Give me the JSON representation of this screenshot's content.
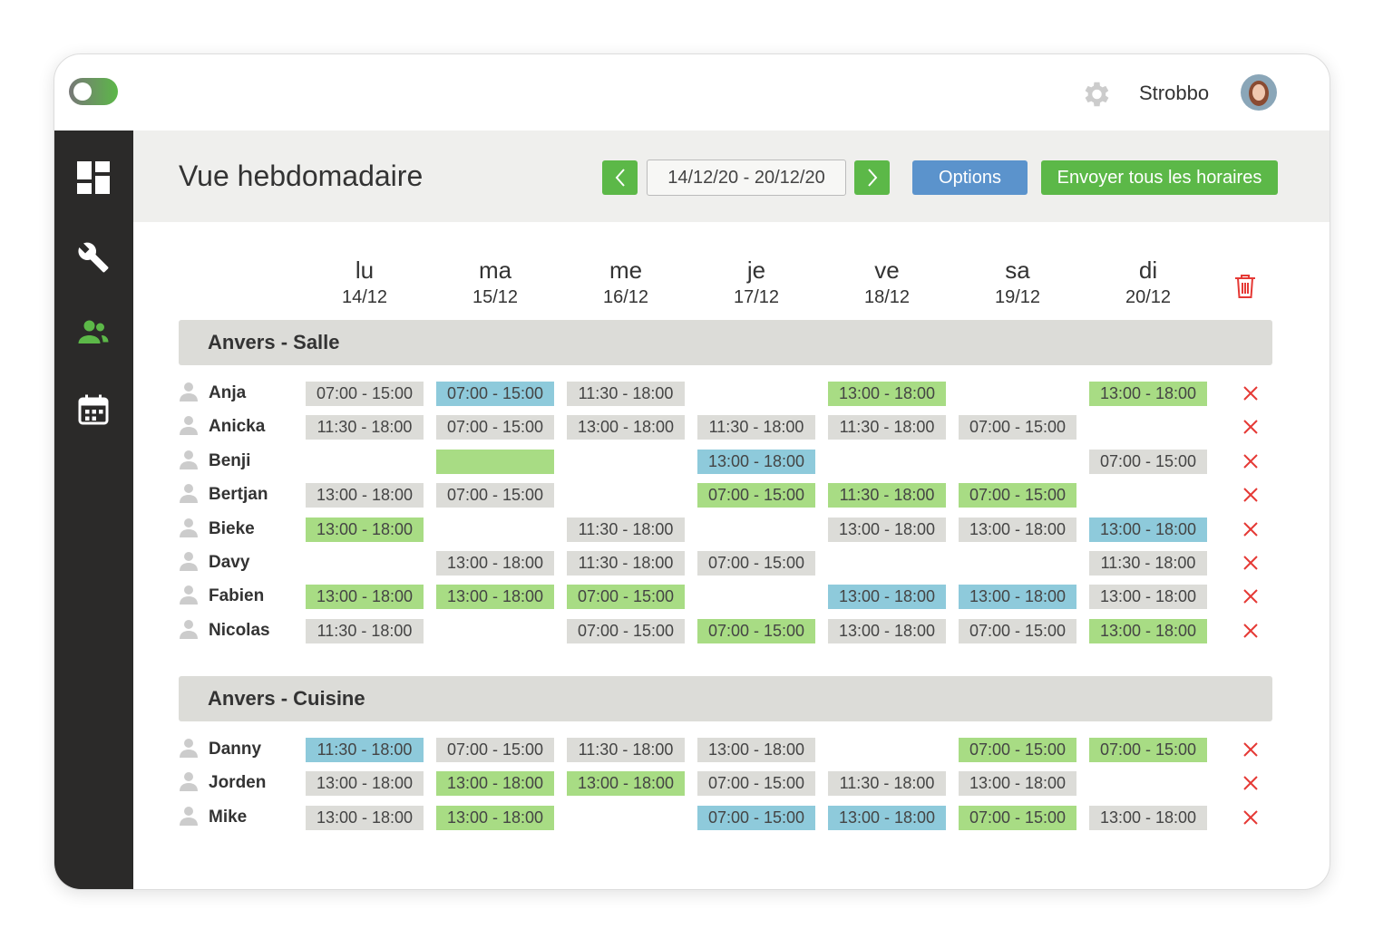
{
  "app": {
    "user": "Strobbo"
  },
  "header": {
    "title": "Vue hebdomadaire",
    "date_range": "14/12/20 - 20/12/20",
    "options_button": "Options",
    "send_button": "Envoyer tous les horaires"
  },
  "days": [
    {
      "name": "lu",
      "date": "14/12"
    },
    {
      "name": "ma",
      "date": "15/12"
    },
    {
      "name": "me",
      "date": "16/12"
    },
    {
      "name": "je",
      "date": "17/12"
    },
    {
      "name": "ve",
      "date": "18/12"
    },
    {
      "name": "sa",
      "date": "19/12"
    },
    {
      "name": "di",
      "date": "20/12"
    }
  ],
  "groups": [
    {
      "name": "Anvers - Salle",
      "rows": [
        {
          "name": "Anja",
          "shifts": [
            {
              "time": "07:00 - 15:00",
              "color": "#dcdcd8"
            },
            {
              "time": "07:00 - 15:00",
              "color": "#8ecadb"
            },
            {
              "time": "11:30 - 18:00",
              "color": "#dcdcd8"
            },
            null,
            {
              "time": "13:00 - 18:00",
              "color": "#a8dc84"
            },
            null,
            {
              "time": "13:00 - 18:00",
              "color": "#a8dc84"
            }
          ]
        },
        {
          "name": "Anicka",
          "shifts": [
            {
              "time": "11:30 - 18:00",
              "color": "#dcdcd8"
            },
            {
              "time": "07:00 - 15:00",
              "color": "#dcdcd8"
            },
            {
              "time": "13:00 - 18:00",
              "color": "#dcdcd8"
            },
            {
              "time": "11:30 - 18:00",
              "color": "#dcdcd8"
            },
            {
              "time": "11:30 - 18:00",
              "color": "#dcdcd8"
            },
            {
              "time": "07:00 - 15:00",
              "color": "#dcdcd8"
            },
            null
          ]
        },
        {
          "name": "Benji",
          "shifts": [
            null,
            {
              "color": "#a8dc84"
            },
            null,
            {
              "time": "13:00 - 18:00",
              "color": "#8ecadb"
            },
            null,
            null,
            {
              "time": "07:00 - 15:00",
              "color": "#dcdcd8"
            }
          ]
        },
        {
          "name": "Bertjan",
          "shifts": [
            {
              "time": "13:00 - 18:00",
              "color": "#dcdcd8"
            },
            {
              "time": "07:00 - 15:00",
              "color": "#dcdcd8"
            },
            null,
            {
              "time": "07:00 - 15:00",
              "color": "#a8dc84"
            },
            {
              "time": "11:30 - 18:00",
              "color": "#a8dc84"
            },
            {
              "time": "07:00 - 15:00",
              "color": "#a8dc84"
            },
            null
          ]
        },
        {
          "name": "Bieke",
          "shifts": [
            {
              "time": "13:00 - 18:00",
              "color": "#a8dc84"
            },
            null,
            {
              "time": "11:30 - 18:00",
              "color": "#dcdcd8"
            },
            null,
            {
              "time": "13:00 - 18:00",
              "color": "#dcdcd8"
            },
            {
              "time": "13:00 - 18:00",
              "color": "#dcdcd8"
            },
            {
              "time": "13:00 - 18:00",
              "color": "#8ecadb"
            }
          ]
        },
        {
          "name": "Davy",
          "shifts": [
            null,
            {
              "time": "13:00 - 18:00",
              "color": "#dcdcd8"
            },
            {
              "time": "11:30 - 18:00",
              "color": "#dcdcd8"
            },
            {
              "time": "07:00 - 15:00",
              "color": "#dcdcd8"
            },
            null,
            null,
            {
              "time": "11:30 - 18:00",
              "color": "#dcdcd8"
            }
          ]
        },
        {
          "name": "Fabien",
          "shifts": [
            {
              "time": "13:00 - 18:00",
              "color": "#a8dc84"
            },
            {
              "time": "13:00 - 18:00",
              "color": "#a8dc84"
            },
            {
              "time": "07:00 - 15:00",
              "color": "#a8dc84"
            },
            null,
            {
              "time": "13:00 - 18:00",
              "color": "#8ecadb"
            },
            {
              "time": "13:00 - 18:00",
              "color": "#8ecadb"
            },
            {
              "time": "13:00 - 18:00",
              "color": "#dcdcd8"
            }
          ]
        },
        {
          "name": "Nicolas",
          "shifts": [
            {
              "time": "11:30 - 18:00",
              "color": "#dcdcd8"
            },
            null,
            {
              "time": "07:00 - 15:00",
              "color": "#dcdcd8"
            },
            {
              "time": "07:00 - 15:00",
              "color": "#a8dc84"
            },
            {
              "time": "13:00 - 18:00",
              "color": "#dcdcd8"
            },
            {
              "time": "07:00 - 15:00",
              "color": "#dcdcd8"
            },
            {
              "time": "13:00 - 18:00",
              "color": "#a8dc84"
            }
          ]
        }
      ]
    },
    {
      "name": "Anvers - Cuisine",
      "rows": [
        {
          "name": "Danny",
          "shifts": [
            {
              "time": "11:30 - 18:00",
              "color": "#8ecadb"
            },
            {
              "time": "07:00 - 15:00",
              "color": "#dcdcd8"
            },
            {
              "time": "11:30 - 18:00",
              "color": "#dcdcd8"
            },
            {
              "time": "13:00 - 18:00",
              "color": "#dcdcd8"
            },
            null,
            {
              "time": "07:00 - 15:00",
              "color": "#a8dc84"
            },
            {
              "time": "07:00 - 15:00",
              "color": "#a8dc84"
            }
          ]
        },
        {
          "name": "Jorden",
          "shifts": [
            {
              "time": "13:00 - 18:00",
              "color": "#dcdcd8"
            },
            {
              "time": "13:00 - 18:00",
              "color": "#a8dc84"
            },
            {
              "time": "13:00 - 18:00",
              "color": "#a8dc84"
            },
            {
              "time": "07:00 - 15:00",
              "color": "#dcdcd8"
            },
            {
              "time": "11:30 - 18:00",
              "color": "#dcdcd8"
            },
            {
              "time": "13:00 - 18:00",
              "color": "#dcdcd8"
            },
            null
          ]
        },
        {
          "name": "Mike",
          "shifts": [
            {
              "time": "13:00 - 18:00",
              "color": "#dcdcd8"
            },
            {
              "time": "13:00 - 18:00",
              "color": "#a8dc84"
            },
            null,
            {
              "time": "07:00 - 15:00",
              "color": "#8ecadb"
            },
            {
              "time": "13:00 - 18:00",
              "color": "#8ecadb"
            },
            {
              "time": "07:00 - 15:00",
              "color": "#a8dc84"
            },
            {
              "time": "13:00 - 18:00",
              "color": "#dcdcd8"
            }
          ]
        }
      ]
    }
  ]
}
